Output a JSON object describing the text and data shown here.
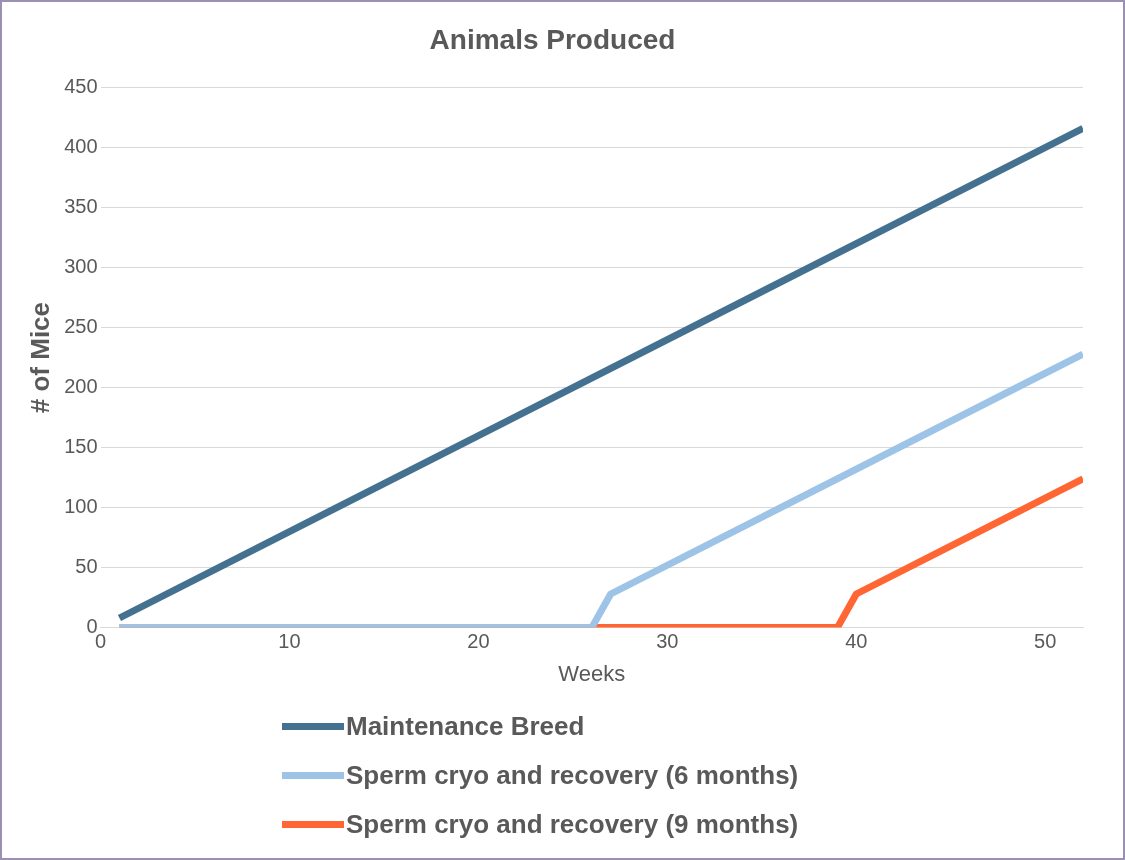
{
  "chart_data": {
    "type": "line",
    "title": "Animals Produced",
    "xlabel": "Weeks",
    "ylabel": "# of Mice",
    "xlim": [
      0,
      52
    ],
    "xticks": [
      0,
      10,
      20,
      30,
      40,
      50
    ],
    "ylim": [
      0,
      450
    ],
    "yticks": [
      0,
      50,
      100,
      150,
      200,
      250,
      300,
      350,
      400,
      450
    ],
    "grid": "y",
    "legend": "bottom",
    "marker": "none",
    "line_style": "solid",
    "series": [
      {
        "name": "Maintenance Breed",
        "color": "#44718f",
        "x": [
          1,
          52
        ],
        "values": [
          8,
          416
        ]
      },
      {
        "name": "Sperm cryo and recovery (6 months)",
        "color": "#9dc3e6",
        "x": [
          1,
          26,
          27,
          52
        ],
        "values": [
          0,
          0,
          28,
          228
        ]
      },
      {
        "name": "Sperm cryo and recovery (9 months)",
        "color": "#ff6633",
        "x": [
          1,
          39,
          40,
          52
        ],
        "values": [
          0,
          0,
          28,
          124
        ]
      }
    ]
  }
}
